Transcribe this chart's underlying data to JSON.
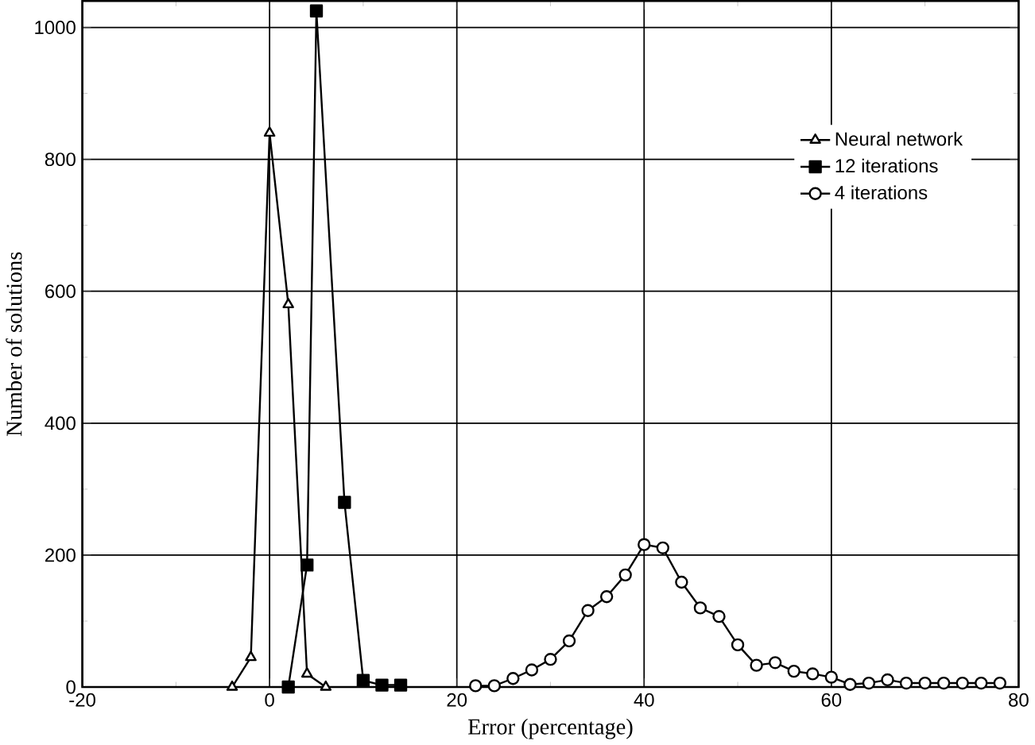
{
  "chart_data": {
    "type": "line",
    "xlabel": "Error (percentage)",
    "ylabel": "Number of solutions",
    "xlim": [
      -20,
      80
    ],
    "xticks": [
      -20,
      0,
      20,
      40,
      60,
      80
    ],
    "ylim": [
      0,
      1040
    ],
    "yticks": [
      0,
      200,
      400,
      600,
      800,
      1000
    ],
    "grid": true,
    "legend": "top right",
    "series": [
      {
        "name": "Neural network",
        "color": "#000000",
        "marker": "triangle",
        "x": [
          -4,
          -2,
          0,
          2,
          4,
          6
        ],
        "values": [
          0,
          45,
          840,
          580,
          20,
          0
        ]
      },
      {
        "name": "12 iterations",
        "color": "#000000",
        "marker": "square",
        "x": [
          2,
          4,
          5,
          8,
          10,
          12,
          14
        ],
        "values": [
          0,
          185,
          1025,
          280,
          10,
          3,
          3
        ]
      },
      {
        "name": "4 iterations",
        "color": "#000000",
        "marker": "circle",
        "x": [
          22,
          24,
          26,
          28,
          30,
          32,
          34,
          36,
          38,
          40,
          42,
          44,
          46,
          48,
          50,
          52,
          54,
          56,
          58,
          60,
          62,
          64,
          66,
          68,
          70,
          72,
          74,
          76,
          78
        ],
        "values": [
          2,
          2,
          13,
          26,
          42,
          70,
          116,
          137,
          170,
          216,
          211,
          159,
          120,
          107,
          64,
          33,
          37,
          24,
          20,
          15,
          4,
          6,
          11,
          6,
          6,
          6,
          6,
          6,
          6
        ]
      }
    ]
  }
}
